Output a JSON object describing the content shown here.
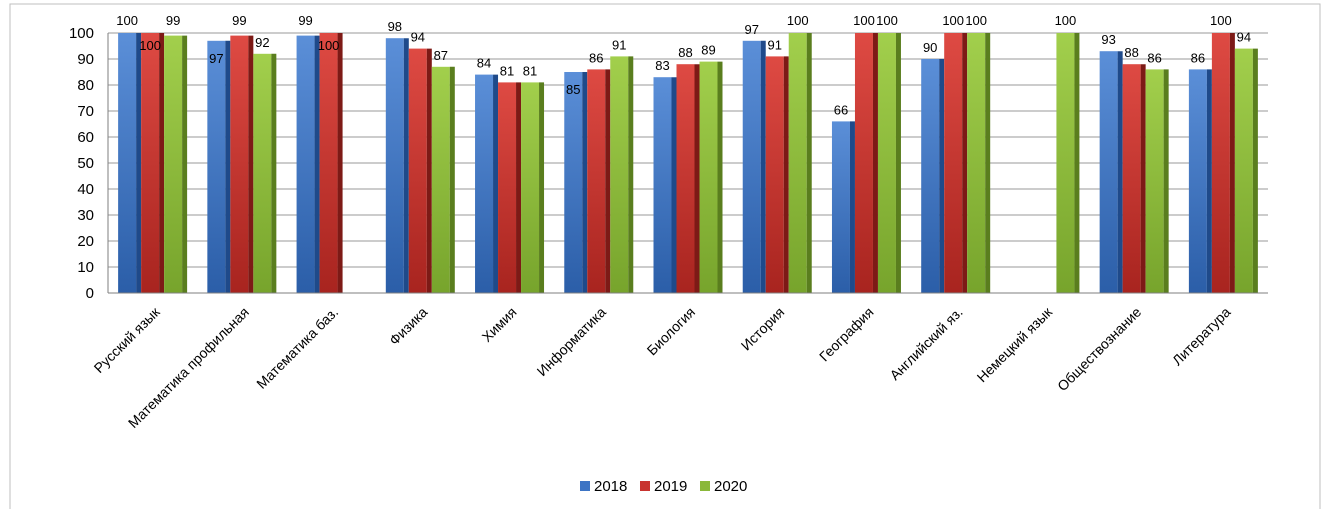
{
  "chart_data": {
    "type": "bar",
    "categories": [
      "Русский язык",
      "Математика профильная",
      "Математика баз.",
      "Физика",
      "Химия",
      "Информатика",
      "Биология",
      "История",
      "География",
      "Английский яз.",
      "Немецкий язык",
      "Обществознание",
      "Литература"
    ],
    "series": [
      {
        "name": "2018",
        "color": "#3d74c4",
        "values": [
          100,
          97,
          99,
          98,
          84,
          85,
          83,
          97,
          66,
          90,
          null,
          93,
          86
        ]
      },
      {
        "name": "2019",
        "color": "#c8342f",
        "values": [
          100,
          99,
          100,
          94,
          81,
          86,
          88,
          91,
          100,
          100,
          null,
          88,
          100
        ]
      },
      {
        "name": "2020",
        "color": "#8ab83a",
        "values": [
          99,
          92,
          null,
          87,
          81,
          91,
          89,
          100,
          100,
          100,
          100,
          86,
          94
        ]
      }
    ],
    "ylim": [
      0,
      100
    ],
    "yticks": [
      0,
      10,
      20,
      30,
      40,
      50,
      60,
      70,
      80,
      90,
      100
    ],
    "grid": true,
    "legend": "bottom",
    "title": "",
    "xlabel": "",
    "ylabel": ""
  }
}
